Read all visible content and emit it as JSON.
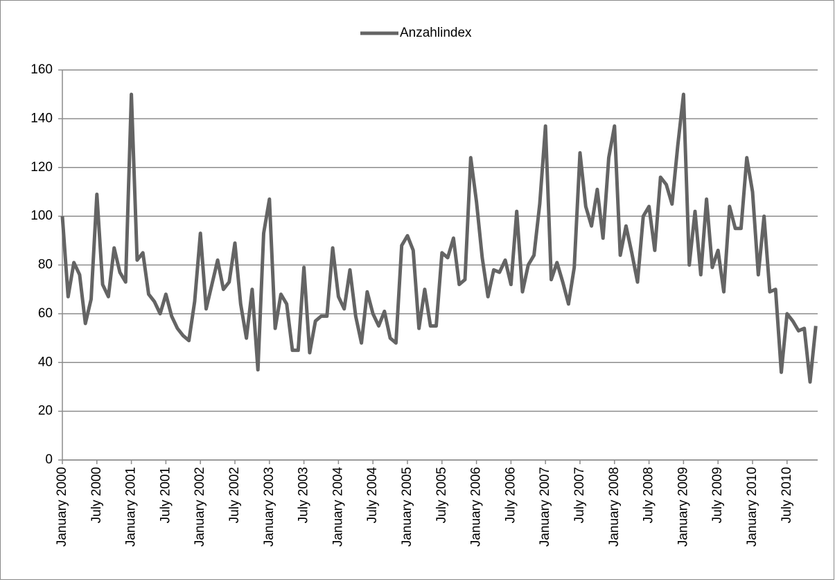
{
  "chart_data": {
    "type": "line",
    "categories": [
      "January 2000",
      null,
      null,
      null,
      null,
      null,
      "July 2000",
      null,
      null,
      null,
      null,
      null,
      "January 2001",
      null,
      null,
      null,
      null,
      null,
      "July 2001",
      null,
      null,
      null,
      null,
      null,
      "January 2002",
      null,
      null,
      null,
      null,
      null,
      "July 2002",
      null,
      null,
      null,
      null,
      null,
      "January 2003",
      null,
      null,
      null,
      null,
      null,
      "July 2003",
      null,
      null,
      null,
      null,
      null,
      "January 2004",
      null,
      null,
      null,
      null,
      null,
      "July 2004",
      null,
      null,
      null,
      null,
      null,
      "January 2005",
      null,
      null,
      null,
      null,
      null,
      "July 2005",
      null,
      null,
      null,
      null,
      null,
      "January 2006",
      null,
      null,
      null,
      null,
      null,
      "July 2006",
      null,
      null,
      null,
      null,
      null,
      "January 2007",
      null,
      null,
      null,
      null,
      null,
      "July 2007",
      null,
      null,
      null,
      null,
      null,
      "January 2008",
      null,
      null,
      null,
      null,
      null,
      "July 2008",
      null,
      null,
      null,
      null,
      null,
      "January 2009",
      null,
      null,
      null,
      null,
      null,
      "July 2009",
      null,
      null,
      null,
      null,
      null,
      "January 2010",
      null,
      null,
      null,
      null,
      null,
      "July 2010",
      null,
      null,
      null,
      null,
      null
    ],
    "series": [
      {
        "name": "Anzahlindex",
        "color": "#646464",
        "values": [
          100,
          67,
          81,
          76,
          56,
          66,
          109,
          72,
          67,
          87,
          77,
          73,
          150,
          82,
          85,
          68,
          65,
          60,
          68,
          59,
          54,
          51,
          49,
          65,
          93,
          62,
          72,
          82,
          70,
          73,
          89,
          64,
          50,
          70,
          37,
          93,
          107,
          54,
          68,
          64,
          45,
          45,
          79,
          44,
          57,
          59,
          59,
          87,
          67,
          62,
          78,
          59,
          48,
          69,
          60,
          55,
          61,
          50,
          48,
          88,
          92,
          86,
          54,
          70,
          55,
          55,
          85,
          83,
          91,
          72,
          74,
          124,
          106,
          83,
          67,
          78,
          77,
          82,
          72,
          102,
          69,
          80,
          84,
          105,
          137,
          74,
          81,
          73,
          64,
          79,
          126,
          104,
          96,
          111,
          91,
          124,
          137,
          84,
          96,
          85,
          73,
          100,
          104,
          86,
          116,
          113,
          105,
          129,
          150,
          80,
          102,
          76,
          107,
          79,
          86,
          69,
          104,
          95,
          95,
          124,
          110,
          76,
          100,
          69,
          70,
          36,
          60,
          57,
          53,
          54,
          32,
          55
        ]
      }
    ],
    "ylim": [
      0,
      160
    ],
    "yticks": [
      0,
      20,
      40,
      60,
      80,
      100,
      120,
      140,
      160
    ],
    "grid": true,
    "legend": "top"
  }
}
